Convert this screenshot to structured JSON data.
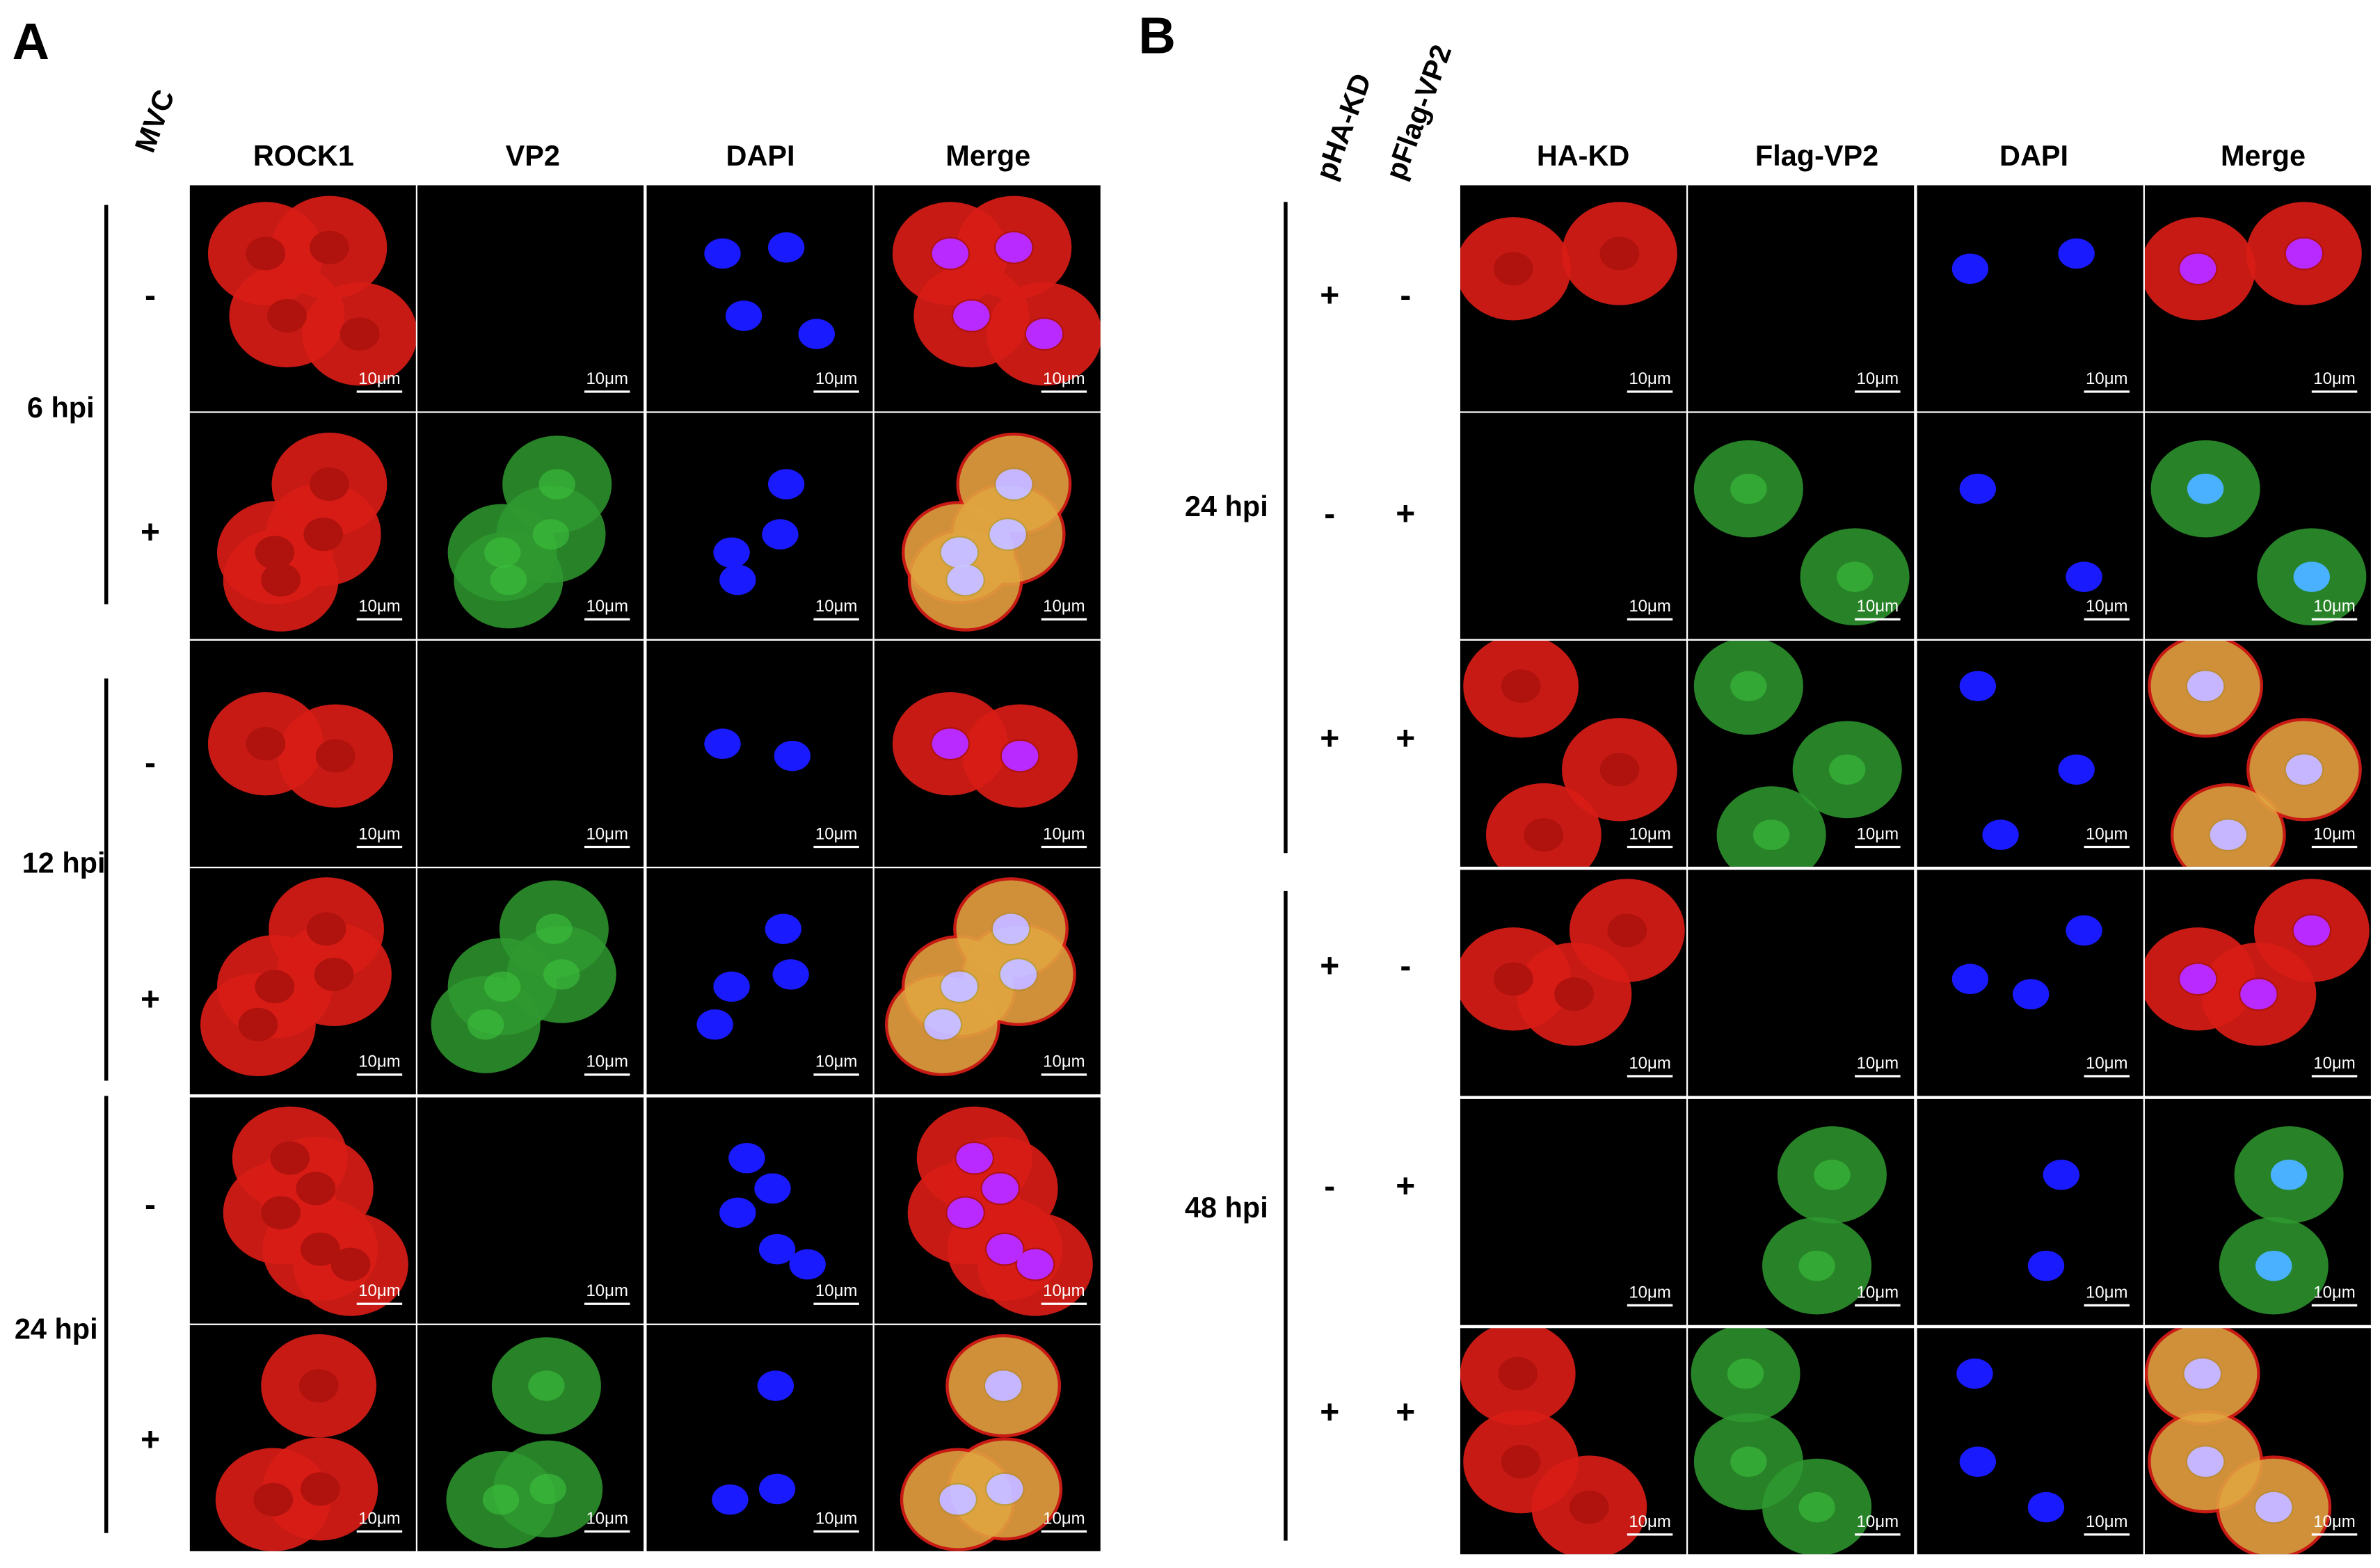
{
  "panel_a": {
    "letter": "A",
    "treatment_label": "MVC",
    "columns": [
      "ROCK1",
      "VP2",
      "DAPI",
      "Merge"
    ],
    "groups": [
      {
        "label": "6 hpi",
        "rows": [
          {
            "treatment": "-",
            "scale_bars": [
              "10μm",
              "10μm",
              "10μm",
              "10μm"
            ]
          },
          {
            "treatment": "+",
            "scale_bars": [
              "10μm",
              "10μm",
              "10μm",
              "10μm"
            ]
          }
        ]
      },
      {
        "label": "12 hpi",
        "rows": [
          {
            "treatment": "-",
            "scale_bars": [
              "10μm",
              "10μm",
              "10μm",
              "10μm"
            ]
          },
          {
            "treatment": "+",
            "scale_bars": [
              "10μm",
              "10μm",
              "10μm",
              "10μm"
            ]
          }
        ]
      },
      {
        "label": "24 hpi",
        "rows": [
          {
            "treatment": "-",
            "scale_bars": [
              "10μm",
              "10μm",
              "10μm",
              "10μm"
            ]
          },
          {
            "treatment": "+",
            "scale_bars": [
              "10μm",
              "10μm",
              "10μm",
              "10μm"
            ]
          }
        ]
      }
    ]
  },
  "panel_b": {
    "letter": "B",
    "treatment_labels": [
      "pHA-KD",
      "pFlag-VP2"
    ],
    "columns": [
      "HA-KD",
      "Flag-VP2",
      "DAPI",
      "Merge"
    ],
    "groups": [
      {
        "label": "24 hpi",
        "rows": [
          {
            "treatments": [
              "+",
              "-"
            ],
            "scale_bars": [
              "10μm",
              "10μm",
              "10μm",
              "10μm"
            ]
          },
          {
            "treatments": [
              "-",
              "+"
            ],
            "scale_bars": [
              "10μm",
              "10μm",
              "10μm",
              "10μm"
            ]
          },
          {
            "treatments": [
              "+",
              "+"
            ],
            "scale_bars": [
              "10μm",
              "10μm",
              "10μm",
              "10μm"
            ]
          }
        ]
      },
      {
        "label": "48 hpi",
        "rows": [
          {
            "treatments": [
              "+",
              "-"
            ],
            "scale_bars": [
              "10μm",
              "10μm",
              "10μm",
              "10μm"
            ]
          },
          {
            "treatments": [
              "-",
              "+"
            ],
            "scale_bars": [
              "10μm",
              "10μm",
              "10μm",
              "10μm"
            ]
          },
          {
            "treatments": [
              "+",
              "+"
            ],
            "scale_bars": [
              "10μm",
              "10μm",
              "10μm",
              "10μm"
            ]
          }
        ]
      }
    ]
  }
}
